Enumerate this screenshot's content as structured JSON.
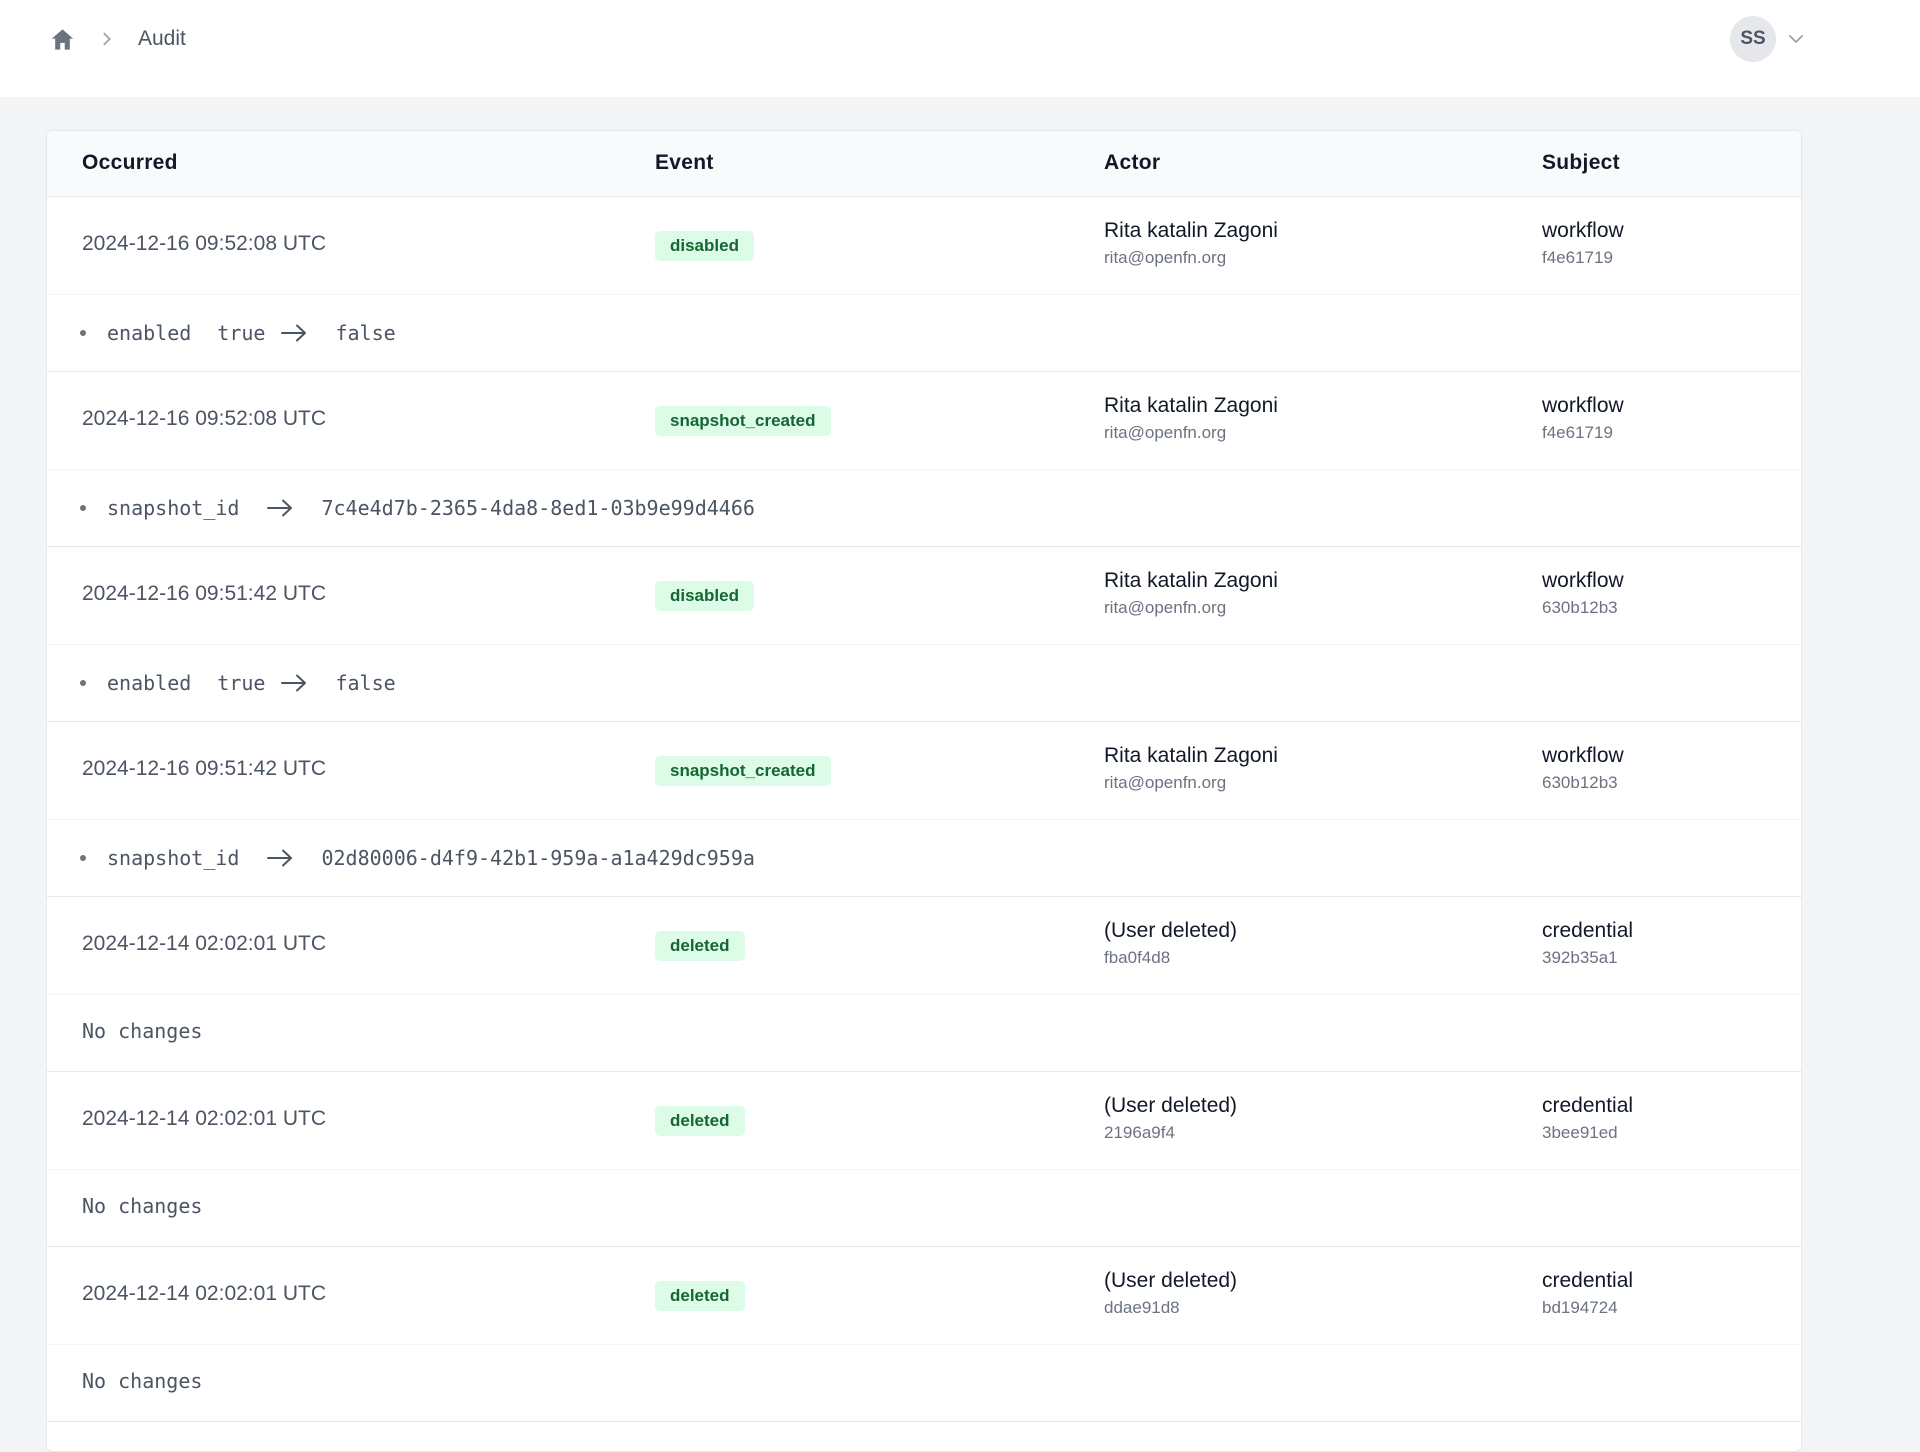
{
  "breadcrumb": {
    "home_icon": "home-icon",
    "separator_icon": "chevron-right-icon",
    "current": "Audit"
  },
  "user_menu": {
    "initials": "SS",
    "caret_icon": "chevron-down-icon"
  },
  "table": {
    "columns": {
      "occurred": "Occurred",
      "event": "Event",
      "actor": "Actor",
      "subject": "Subject"
    },
    "entries": [
      {
        "occurred": "2024-12-16 09:52:08 UTC",
        "event": "disabled",
        "actor_name": "Rita katalin Zagoni",
        "actor_detail": "rita@openfn.org",
        "subject_type": "workflow",
        "subject_id": "f4e61719",
        "change_field": "enabled",
        "change_from": "true",
        "change_to": "false",
        "no_changes": ""
      },
      {
        "occurred": "2024-12-16 09:52:08 UTC",
        "event": "snapshot_created",
        "actor_name": "Rita katalin Zagoni",
        "actor_detail": "rita@openfn.org",
        "subject_type": "workflow",
        "subject_id": "f4e61719",
        "change_field": "snapshot_id",
        "change_from": "",
        "change_to": "7c4e4d7b-2365-4da8-8ed1-03b9e99d4466",
        "no_changes": ""
      },
      {
        "occurred": "2024-12-16 09:51:42 UTC",
        "event": "disabled",
        "actor_name": "Rita katalin Zagoni",
        "actor_detail": "rita@openfn.org",
        "subject_type": "workflow",
        "subject_id": "630b12b3",
        "change_field": "enabled",
        "change_from": "true",
        "change_to": "false",
        "no_changes": ""
      },
      {
        "occurred": "2024-12-16 09:51:42 UTC",
        "event": "snapshot_created",
        "actor_name": "Rita katalin Zagoni",
        "actor_detail": "rita@openfn.org",
        "subject_type": "workflow",
        "subject_id": "630b12b3",
        "change_field": "snapshot_id",
        "change_from": "",
        "change_to": "02d80006-d4f9-42b1-959a-a1a429dc959a",
        "no_changes": ""
      },
      {
        "occurred": "2024-12-14 02:02:01 UTC",
        "event": "deleted",
        "actor_name": "(User deleted)",
        "actor_detail": "fba0f4d8",
        "subject_type": "credential",
        "subject_id": "392b35a1",
        "change_field": "",
        "change_from": "",
        "change_to": "",
        "no_changes": "No changes"
      },
      {
        "occurred": "2024-12-14 02:02:01 UTC",
        "event": "deleted",
        "actor_name": "(User deleted)",
        "actor_detail": "2196a9f4",
        "subject_type": "credential",
        "subject_id": "3bee91ed",
        "change_field": "",
        "change_from": "",
        "change_to": "",
        "no_changes": "No changes"
      },
      {
        "occurred": "2024-12-14 02:02:01 UTC",
        "event": "deleted",
        "actor_name": "(User deleted)",
        "actor_detail": "ddae91d8",
        "subject_type": "credential",
        "subject_id": "bd194724",
        "change_field": "",
        "change_from": "",
        "change_to": "",
        "no_changes": "No changes"
      }
    ]
  },
  "colors": {
    "page_background": "#f2f4f6",
    "badge_background": "#dcfce7",
    "badge_text": "#166534"
  }
}
